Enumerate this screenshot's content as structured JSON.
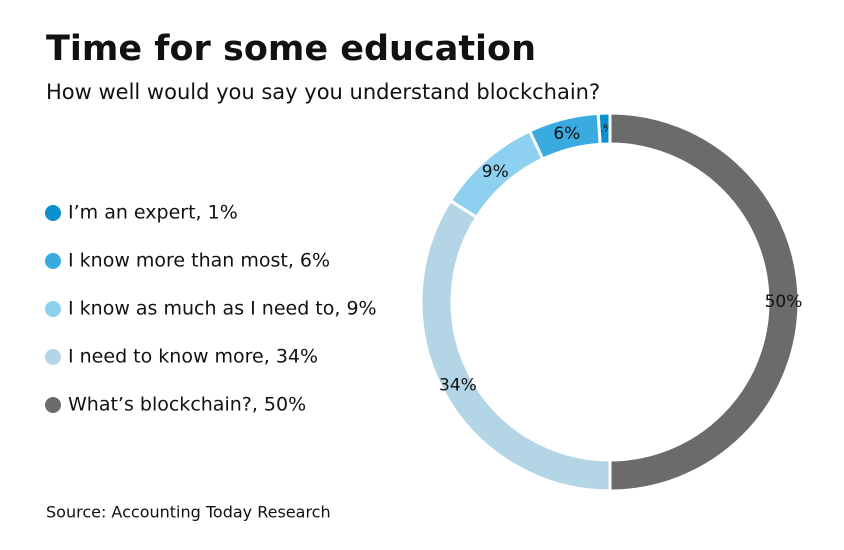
{
  "chart_data": {
    "type": "pie",
    "donut": true,
    "title": "Time for some education",
    "subtitle": "How well would you say you understand blockchain?",
    "source": "Source: Accounting Today Research",
    "categories": [
      "I’m an expert, 1%",
      "I know more than most, 6%",
      "I know as much as I need to, 9%",
      "I need to know more, 34%",
      "What’s blockchain?, 50%"
    ],
    "values": [
      1,
      6,
      9,
      34,
      50
    ],
    "value_labels": [
      "1%",
      "6%",
      "9%",
      "34%",
      "50%"
    ],
    "colors": [
      "#0a8fcf",
      "#3aabe0",
      "#8dd0ef",
      "#b3d5e6",
      "#6b6b6b"
    ]
  }
}
